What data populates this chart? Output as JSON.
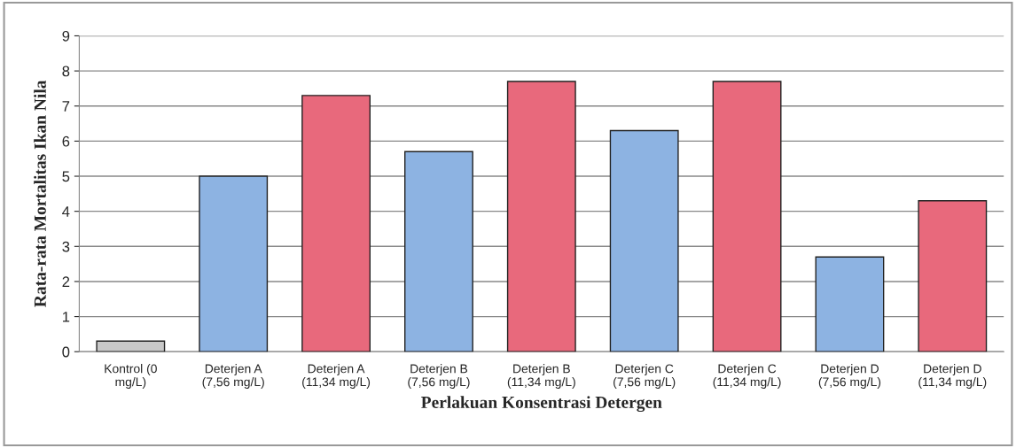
{
  "chart_data": {
    "type": "bar",
    "xlabel": "Perlakuan Konsentrasi Detergen",
    "ylabel": "Rata-rata Mortalitas Ikan Nila",
    "categories": [
      "Kontrol (0\nmg/L)",
      "Deterjen A\n(7,56 mg/L)",
      "Deterjen A\n(11,34 mg/L)",
      "Deterjen B\n(7,56 mg/L)",
      "Deterjen B\n(11,34 mg/L)",
      "Deterjen C\n(7,56 mg/L)",
      "Deterjen C\n(11,34 mg/L)",
      "Deterjen D\n(7,56 mg/L)",
      "Deterjen D\n(11,34 mg/L)"
    ],
    "values": [
      0.3,
      5.0,
      7.3,
      5.7,
      7.7,
      6.3,
      7.7,
      2.7,
      4.3
    ],
    "colors": [
      "#c8c8c8",
      "#8db3e2",
      "#e8697c",
      "#8db3e2",
      "#e8697c",
      "#8db3e2",
      "#e8697c",
      "#8db3e2",
      "#e8697c"
    ],
    "ylim": [
      0,
      9
    ],
    "yticks": [
      0,
      1,
      2,
      3,
      4,
      5,
      6,
      7,
      8,
      9
    ],
    "grid": "y"
  }
}
